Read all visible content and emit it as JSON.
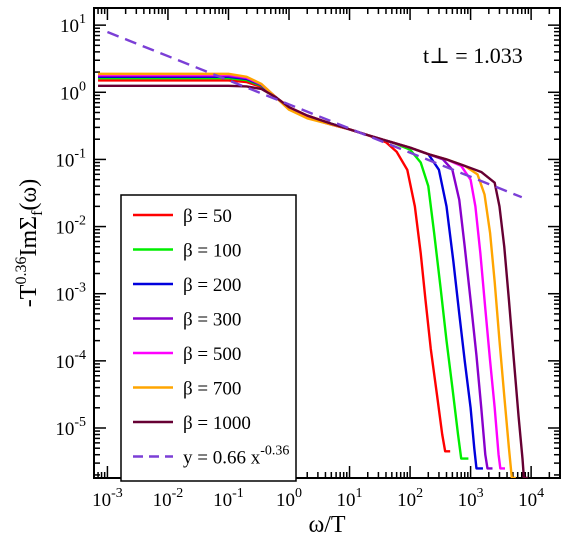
{
  "chart_data": {
    "type": "line",
    "xlabel": "ω/T",
    "ylabel": "-T^0.36 ImΣ_f(ω)",
    "xscale": "log",
    "yscale": "log",
    "xlim": [
      0.0006,
      30000
    ],
    "ylim": [
      1.8e-06,
      18
    ],
    "x_ticks": [
      {
        "value": 0.001,
        "base": "10",
        "exp": "-3"
      },
      {
        "value": 0.01,
        "base": "10",
        "exp": "-2"
      },
      {
        "value": 0.1,
        "base": "10",
        "exp": "-1"
      },
      {
        "value": 1,
        "base": "10",
        "exp": "0"
      },
      {
        "value": 10,
        "base": "10",
        "exp": "1"
      },
      {
        "value": 100,
        "base": "10",
        "exp": "2"
      },
      {
        "value": 1000,
        "base": "10",
        "exp": "3"
      },
      {
        "value": 10000,
        "base": "10",
        "exp": "4"
      }
    ],
    "y_ticks": [
      {
        "value": 1e-05,
        "base": "10",
        "exp": "-5"
      },
      {
        "value": 0.0001,
        "base": "10",
        "exp": "-4"
      },
      {
        "value": 0.001,
        "base": "10",
        "exp": "-3"
      },
      {
        "value": 0.01,
        "base": "10",
        "exp": "-2"
      },
      {
        "value": 0.1,
        "base": "10",
        "exp": "-1"
      },
      {
        "value": 1,
        "base": "10",
        "exp": "0"
      },
      {
        "value": 10,
        "base": "10",
        "exp": "1"
      }
    ],
    "annotation": "t⊥ = 1.033",
    "legend_position": "lower-left",
    "series": [
      {
        "name": "β = 50",
        "color": "#ff0000",
        "dashed": false,
        "points": [
          [
            0.0007,
            1.5
          ],
          [
            0.1,
            1.5
          ],
          [
            0.2,
            1.42
          ],
          [
            0.35,
            1.2
          ],
          [
            0.6,
            0.85
          ],
          [
            1,
            0.6
          ],
          [
            2,
            0.45
          ],
          [
            5,
            0.34
          ],
          [
            10,
            0.28
          ],
          [
            20,
            0.23
          ],
          [
            40,
            0.18
          ],
          [
            60,
            0.13
          ],
          [
            90,
            0.07
          ],
          [
            120,
            0.02
          ],
          [
            150,
            0.004
          ],
          [
            180,
            0.0008
          ],
          [
            220,
            0.00015
          ],
          [
            280,
            3e-05
          ],
          [
            340,
            8e-06
          ],
          [
            380,
            4.5e-06
          ],
          [
            460,
            4.5e-06
          ]
        ]
      },
      {
        "name": "β = 100",
        "color": "#00ee00",
        "dashed": false,
        "points": [
          [
            0.0007,
            1.62
          ],
          [
            0.1,
            1.62
          ],
          [
            0.2,
            1.52
          ],
          [
            0.35,
            1.25
          ],
          [
            0.6,
            0.85
          ],
          [
            1,
            0.58
          ],
          [
            2,
            0.44
          ],
          [
            5,
            0.34
          ],
          [
            10,
            0.28
          ],
          [
            20,
            0.23
          ],
          [
            50,
            0.18
          ],
          [
            100,
            0.14
          ],
          [
            150,
            0.09
          ],
          [
            200,
            0.04
          ],
          [
            250,
            0.008
          ],
          [
            320,
            0.0012
          ],
          [
            400,
            0.0002
          ],
          [
            500,
            4e-05
          ],
          [
            620,
            8e-06
          ],
          [
            700,
            3.5e-06
          ],
          [
            920,
            3.5e-06
          ]
        ]
      },
      {
        "name": "β = 200",
        "color": "#0000dd",
        "dashed": false,
        "points": [
          [
            0.0007,
            1.7
          ],
          [
            0.1,
            1.7
          ],
          [
            0.2,
            1.58
          ],
          [
            0.35,
            1.28
          ],
          [
            0.6,
            0.85
          ],
          [
            1,
            0.57
          ],
          [
            2,
            0.43
          ],
          [
            5,
            0.34
          ],
          [
            10,
            0.28
          ],
          [
            20,
            0.23
          ],
          [
            50,
            0.18
          ],
          [
            100,
            0.15
          ],
          [
            200,
            0.12
          ],
          [
            300,
            0.07
          ],
          [
            400,
            0.02
          ],
          [
            520,
            0.003
          ],
          [
            650,
            0.0005
          ],
          [
            800,
            0.0001
          ],
          [
            1000,
            2e-05
          ],
          [
            1150,
            5e-06
          ],
          [
            1250,
            2.5e-06
          ],
          [
            1600,
            2.5e-06
          ]
        ]
      },
      {
        "name": "β = 300",
        "color": "#8800cc",
        "dashed": false,
        "points": [
          [
            0.0007,
            1.75
          ],
          [
            0.1,
            1.75
          ],
          [
            0.2,
            1.62
          ],
          [
            0.35,
            1.3
          ],
          [
            0.6,
            0.85
          ],
          [
            1,
            0.56
          ],
          [
            2,
            0.42
          ],
          [
            5,
            0.33
          ],
          [
            10,
            0.28
          ],
          [
            20,
            0.23
          ],
          [
            50,
            0.18
          ],
          [
            100,
            0.15
          ],
          [
            200,
            0.12
          ],
          [
            350,
            0.1
          ],
          [
            500,
            0.07
          ],
          [
            650,
            0.025
          ],
          [
            800,
            0.005
          ],
          [
            1000,
            0.0008
          ],
          [
            1250,
            0.00012
          ],
          [
            1500,
            2e-05
          ],
          [
            1750,
            4e-06
          ],
          [
            1900,
            2.5e-06
          ],
          [
            2300,
            2.5e-06
          ]
        ]
      },
      {
        "name": "β = 500",
        "color": "#ff00ff",
        "dashed": false,
        "points": [
          [
            0.0007,
            1.82
          ],
          [
            0.1,
            1.82
          ],
          [
            0.2,
            1.66
          ],
          [
            0.35,
            1.32
          ],
          [
            0.6,
            0.85
          ],
          [
            1,
            0.56
          ],
          [
            2,
            0.42
          ],
          [
            5,
            0.33
          ],
          [
            10,
            0.28
          ],
          [
            20,
            0.23
          ],
          [
            50,
            0.18
          ],
          [
            100,
            0.15
          ],
          [
            200,
            0.12
          ],
          [
            400,
            0.1
          ],
          [
            700,
            0.08
          ],
          [
            1000,
            0.05
          ],
          [
            1200,
            0.02
          ],
          [
            1450,
            0.004
          ],
          [
            1750,
            0.0006
          ],
          [
            2100,
            0.0001
          ],
          [
            2500,
            2e-05
          ],
          [
            2900,
            4e-06
          ],
          [
            3100,
            2.5e-06
          ],
          [
            3700,
            2.5e-06
          ]
        ]
      },
      {
        "name": "β = 700",
        "color": "#ffa500",
        "dashed": false,
        "points": [
          [
            0.0007,
            1.88
          ],
          [
            0.1,
            1.88
          ],
          [
            0.2,
            1.7
          ],
          [
            0.35,
            1.33
          ],
          [
            0.6,
            0.85
          ],
          [
            1,
            0.55
          ],
          [
            2,
            0.41
          ],
          [
            5,
            0.33
          ],
          [
            10,
            0.28
          ],
          [
            20,
            0.23
          ],
          [
            50,
            0.18
          ],
          [
            100,
            0.15
          ],
          [
            200,
            0.12
          ],
          [
            400,
            0.1
          ],
          [
            800,
            0.08
          ],
          [
            1300,
            0.06
          ],
          [
            1700,
            0.03
          ],
          [
            2100,
            0.008
          ],
          [
            2500,
            0.0015
          ],
          [
            3000,
            0.0002
          ],
          [
            3600,
            3e-05
          ],
          [
            4300,
            5e-06
          ],
          [
            4800,
            1.8e-06
          ],
          [
            5600,
            1.8e-06
          ]
        ]
      },
      {
        "name": "β = 1000",
        "color": "#660033",
        "dashed": false,
        "points": [
          [
            0.0007,
            1.25
          ],
          [
            0.1,
            1.25
          ],
          [
            0.2,
            1.22
          ],
          [
            0.35,
            1.12
          ],
          [
            0.6,
            0.85
          ],
          [
            1,
            0.6
          ],
          [
            2,
            0.45
          ],
          [
            5,
            0.34
          ],
          [
            10,
            0.28
          ],
          [
            20,
            0.23
          ],
          [
            50,
            0.18
          ],
          [
            100,
            0.15
          ],
          [
            200,
            0.12
          ],
          [
            400,
            0.1
          ],
          [
            800,
            0.08
          ],
          [
            1500,
            0.065
          ],
          [
            2500,
            0.045
          ],
          [
            3000,
            0.02
          ],
          [
            3600,
            0.005
          ],
          [
            4300,
            0.0008
          ],
          [
            5200,
            0.0001
          ],
          [
            6200,
            1.5e-05
          ],
          [
            7200,
            3.5e-06
          ],
          [
            7600,
            1.8e-06
          ],
          [
            8800,
            1.8e-06
          ]
        ]
      },
      {
        "name": "y = 0.66 x^-0.36",
        "color": "#7b3fd6",
        "dashed": true,
        "points": [
          [
            0.001,
            7.9
          ],
          [
            7000,
            0.0274
          ]
        ]
      }
    ]
  }
}
